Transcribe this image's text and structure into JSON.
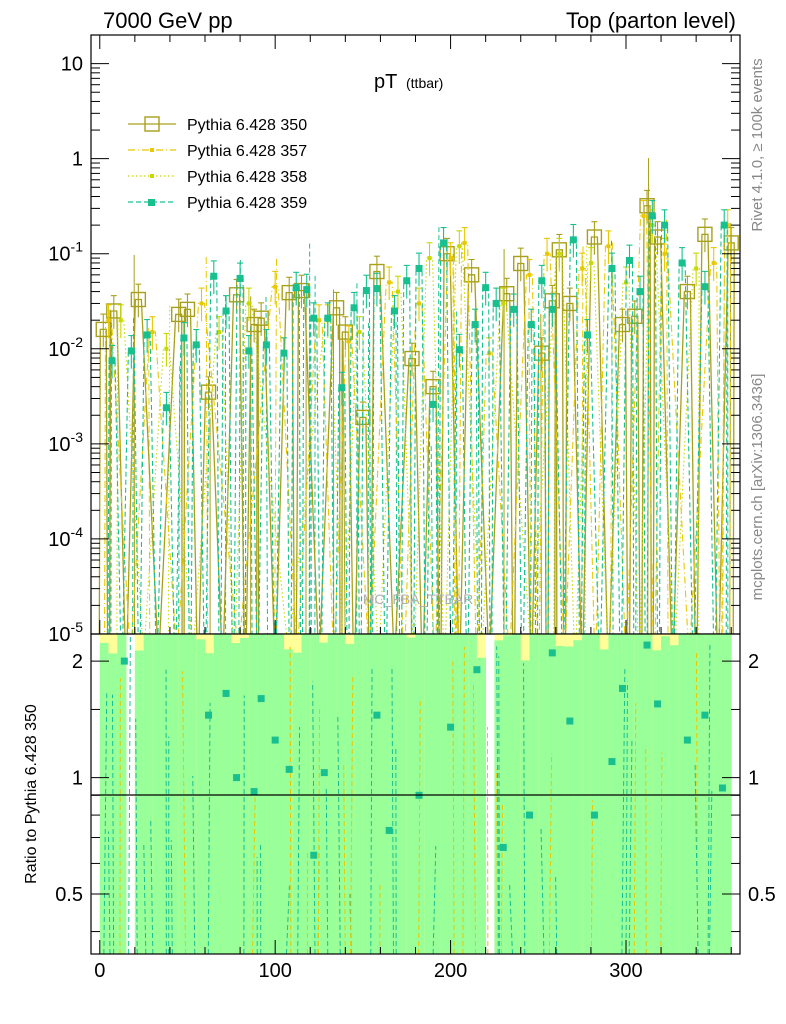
{
  "header": {
    "left": "7000 GeV pp",
    "right": "Top (parton level)"
  },
  "side": {
    "rivet": "Rivet 4.1.0, ≥ 100k events",
    "mcplots": "mcplots.cern.ch [arXiv:1306.3436]"
  },
  "watermark": "MC_FBA_TTBAR",
  "colors": {
    "s350": "#a8a01c",
    "s357": "#e8c800",
    "s358": "#c8d800",
    "s359": "#18c090",
    "band_yellow": "#ffff99",
    "band_green": "#99ff99"
  },
  "chart_data": {
    "type": "line",
    "title_main": "pT",
    "title_sub": "(ttbar)",
    "xlim": [
      -5,
      365
    ],
    "ylim": [
      1e-05,
      20
    ],
    "yscale": "log",
    "ratio_ylabel": "Ratio to Pythia 6.428 350",
    "ratio_ylim": [
      0.35,
      2.35
    ],
    "x_ticks": [
      "0",
      "100",
      "200",
      "300"
    ],
    "y_ticks": [
      "10",
      "1",
      "10^-1",
      "10^-2",
      "10^-3",
      "10^-4",
      "10^-5"
    ],
    "ratio_ticks": [
      "0.5",
      "1",
      "2"
    ],
    "legend": [
      {
        "name": "Pythia 6.428 350",
        "style": "solid-open-square"
      },
      {
        "name": "Pythia 6.428 357",
        "style": "dashdot"
      },
      {
        "name": "Pythia 6.428 358",
        "style": "dotted"
      },
      {
        "name": "Pythia 6.428 359",
        "style": "dashed-filled-square"
      }
    ],
    "series": [
      {
        "name": "Pythia 6.428 350",
        "x": [
          2,
          8,
          22,
          45,
          50,
          62,
          78,
          88,
          92,
          108,
          115,
          135,
          140,
          150,
          158,
          178,
          190,
          198,
          212,
          232,
          240,
          252,
          258,
          262,
          268,
          282,
          298,
          305,
          312,
          318,
          335,
          345,
          360
        ],
        "values": [
          0.016,
          0.025,
          0.033,
          0.023,
          0.026,
          0.0035,
          0.037,
          0.018,
          0.021,
          0.039,
          0.041,
          0.027,
          0.015,
          0.0019,
          0.065,
          0.0079,
          0.004,
          0.1,
          0.06,
          0.038,
          0.079,
          0.009,
          0.032,
          0.11,
          0.03,
          0.15,
          0.018,
          0.022,
          0.32,
          0.15,
          0.04,
          0.16,
          0.13
        ]
      },
      {
        "name": "Pythia 6.428 357",
        "x": [
          5,
          30,
          58,
          100,
          125,
          142,
          165,
          182,
          200,
          208,
          222,
          245,
          255,
          275,
          290,
          310,
          322,
          350,
          358
        ],
        "values": [
          0.02,
          0.015,
          0.03,
          0.045,
          0.02,
          0.012,
          0.05,
          0.03,
          0.09,
          0.13,
          0.009,
          0.06,
          0.1,
          0.07,
          0.12,
          0.25,
          0.1,
          0.08,
          0.2
        ]
      },
      {
        "name": "Pythia 6.428 358",
        "x": [
          12,
          38,
          68,
          85,
          130,
          148,
          170,
          188,
          205,
          230,
          262,
          280,
          300,
          315,
          340
        ],
        "values": [
          0.02,
          0.01,
          0.015,
          0.03,
          0.02,
          0.015,
          0.04,
          0.09,
          0.12,
          0.03,
          0.1,
          0.08,
          0.05,
          0.2,
          0.07
        ]
      },
      {
        "name": "Pythia 6.428 359",
        "x": [
          7,
          18,
          27,
          38,
          48,
          55,
          65,
          72,
          80,
          85,
          95,
          105,
          112,
          118,
          122,
          130,
          138,
          145,
          152,
          158,
          168,
          175,
          182,
          190,
          196,
          205,
          214,
          220,
          226,
          236,
          246,
          252,
          258,
          270,
          278,
          292,
          302,
          308,
          315,
          322,
          332,
          345,
          356
        ],
        "values": [
          0.0075,
          0.0095,
          0.014,
          0.0024,
          0.013,
          0.011,
          0.058,
          0.025,
          0.055,
          0.0095,
          0.011,
          0.009,
          0.044,
          0.042,
          0.021,
          0.021,
          0.0039,
          0.027,
          0.041,
          0.043,
          0.025,
          0.052,
          0.07,
          0.0026,
          0.13,
          0.0098,
          0.018,
          0.044,
          0.03,
          0.026,
          0.018,
          0.052,
          0.026,
          0.14,
          0.014,
          0.07,
          0.085,
          0.04,
          0.25,
          0.2,
          0.08,
          0.045,
          0.2
        ]
      },
      {
        "name": "Ratio Pythia 6.428 359 / 350",
        "x": [
          14,
          62,
          72,
          78,
          88,
          92,
          100,
          108,
          122,
          128,
          158,
          165,
          182,
          200,
          215,
          230,
          245,
          258,
          268,
          282,
          292,
          298,
          312,
          318,
          335,
          345,
          355
        ],
        "values": [
          2.0,
          1.45,
          1.65,
          1.0,
          0.92,
          1.6,
          1.25,
          1.05,
          0.63,
          1.03,
          1.45,
          0.73,
          0.9,
          1.35,
          1.9,
          0.66,
          0.8,
          2.1,
          1.4,
          0.8,
          1.1,
          1.7,
          2.2,
          1.55,
          1.25,
          1.45,
          0.94
        ]
      }
    ]
  }
}
